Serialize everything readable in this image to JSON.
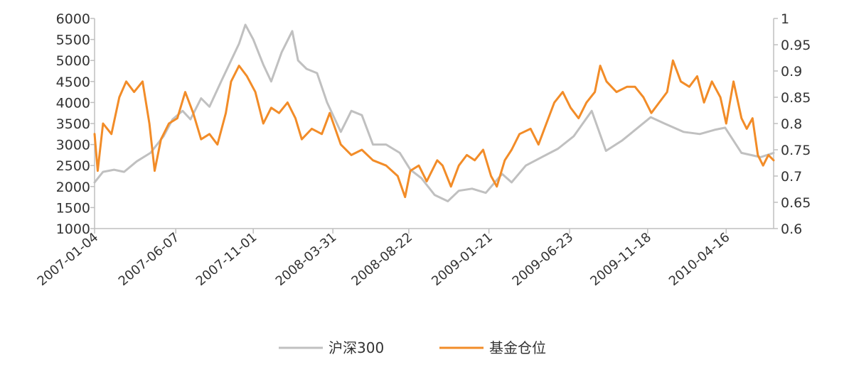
{
  "chart_data": {
    "type": "line",
    "title": "",
    "xlabel": "",
    "ylabel": "",
    "y_left": {
      "range": [
        1000,
        6000
      ],
      "ticks": [
        "1000",
        "1500",
        "2000",
        "2500",
        "3000",
        "3500",
        "4000",
        "4500",
        "5000",
        "5500",
        "6000"
      ]
    },
    "y_right": {
      "range": [
        0.6,
        1.0
      ],
      "ticks": [
        "0.6",
        "0.65",
        "0.7",
        "0.75",
        "0.8",
        "0.85",
        "0.9",
        "0.95",
        "1"
      ]
    },
    "x_ticks": [
      "2007-01-04",
      "2007-06-07",
      "2007-11-01",
      "2008-03-31",
      "2008-08-22",
      "2009-01-21",
      "2009-06-23",
      "2009-11-18",
      "2010-04-16"
    ],
    "x_range": [
      "2007-01-04",
      "2010-07-15"
    ],
    "grid": false,
    "legend_position": "bottom",
    "colors": {
      "hs300": "#c0c0c0",
      "fund": "#f28c28",
      "axis": "#bfbfbf"
    },
    "series": [
      {
        "name": "沪深300",
        "axis": "left",
        "points": [
          [
            "2007-01-04",
            2100
          ],
          [
            "2007-01-20",
            2350
          ],
          [
            "2007-02-10",
            2400
          ],
          [
            "2007-03-01",
            2350
          ],
          [
            "2007-03-25",
            2600
          ],
          [
            "2007-04-20",
            2800
          ],
          [
            "2007-05-15",
            3200
          ],
          [
            "2007-06-01",
            3600
          ],
          [
            "2007-06-20",
            3800
          ],
          [
            "2007-07-05",
            3600
          ],
          [
            "2007-07-25",
            4100
          ],
          [
            "2007-08-10",
            3900
          ],
          [
            "2007-09-01",
            4500
          ],
          [
            "2007-09-20",
            5000
          ],
          [
            "2007-10-05",
            5400
          ],
          [
            "2007-10-17",
            5850
          ],
          [
            "2007-11-01",
            5500
          ],
          [
            "2007-11-20",
            4900
          ],
          [
            "2007-12-05",
            4500
          ],
          [
            "2007-12-25",
            5200
          ],
          [
            "2008-01-14",
            5700
          ],
          [
            "2008-01-25",
            5000
          ],
          [
            "2008-02-10",
            4800
          ],
          [
            "2008-03-01",
            4700
          ],
          [
            "2008-03-20",
            4000
          ],
          [
            "2008-04-15",
            3300
          ],
          [
            "2008-05-05",
            3800
          ],
          [
            "2008-05-25",
            3700
          ],
          [
            "2008-06-15",
            3000
          ],
          [
            "2008-07-10",
            3000
          ],
          [
            "2008-08-05",
            2800
          ],
          [
            "2008-08-25",
            2400
          ],
          [
            "2008-09-15",
            2200
          ],
          [
            "2008-10-10",
            1800
          ],
          [
            "2008-11-04",
            1650
          ],
          [
            "2008-11-25",
            1900
          ],
          [
            "2008-12-20",
            1950
          ],
          [
            "2009-01-15",
            1850
          ],
          [
            "2009-02-15",
            2300
          ],
          [
            "2009-03-05",
            2100
          ],
          [
            "2009-04-01",
            2500
          ],
          [
            "2009-05-01",
            2700
          ],
          [
            "2009-06-01",
            2900
          ],
          [
            "2009-07-01",
            3200
          ],
          [
            "2009-08-04",
            3800
          ],
          [
            "2009-08-31",
            2850
          ],
          [
            "2009-10-01",
            3100
          ],
          [
            "2009-11-24",
            3650
          ],
          [
            "2009-12-20",
            3500
          ],
          [
            "2010-01-25",
            3300
          ],
          [
            "2010-02-25",
            3250
          ],
          [
            "2010-03-25",
            3350
          ],
          [
            "2010-04-14",
            3400
          ],
          [
            "2010-05-15",
            2800
          ],
          [
            "2010-06-20",
            2700
          ],
          [
            "2010-07-15",
            2800
          ]
        ]
      },
      {
        "name": "基金仓位",
        "axis": "right",
        "points": [
          [
            "2007-01-04",
            0.78
          ],
          [
            "2007-01-10",
            0.71
          ],
          [
            "2007-01-20",
            0.8
          ],
          [
            "2007-02-05",
            0.78
          ],
          [
            "2007-02-20",
            0.85
          ],
          [
            "2007-03-05",
            0.88
          ],
          [
            "2007-03-20",
            0.86
          ],
          [
            "2007-04-05",
            0.88
          ],
          [
            "2007-04-18",
            0.8
          ],
          [
            "2007-04-28",
            0.71
          ],
          [
            "2007-05-10",
            0.77
          ],
          [
            "2007-05-25",
            0.8
          ],
          [
            "2007-06-10",
            0.81
          ],
          [
            "2007-06-25",
            0.86
          ],
          [
            "2007-07-10",
            0.82
          ],
          [
            "2007-07-25",
            0.77
          ],
          [
            "2007-08-10",
            0.78
          ],
          [
            "2007-08-25",
            0.76
          ],
          [
            "2007-09-10",
            0.82
          ],
          [
            "2007-09-20",
            0.88
          ],
          [
            "2007-10-05",
            0.91
          ],
          [
            "2007-10-20",
            0.89
          ],
          [
            "2007-11-05",
            0.86
          ],
          [
            "2007-11-20",
            0.8
          ],
          [
            "2007-12-05",
            0.83
          ],
          [
            "2007-12-20",
            0.82
          ],
          [
            "2008-01-05",
            0.84
          ],
          [
            "2008-01-20",
            0.81
          ],
          [
            "2008-02-01",
            0.77
          ],
          [
            "2008-02-20",
            0.79
          ],
          [
            "2008-03-10",
            0.78
          ],
          [
            "2008-03-25",
            0.82
          ],
          [
            "2008-04-15",
            0.76
          ],
          [
            "2008-05-05",
            0.74
          ],
          [
            "2008-05-25",
            0.75
          ],
          [
            "2008-06-15",
            0.73
          ],
          [
            "2008-07-10",
            0.72
          ],
          [
            "2008-08-01",
            0.7
          ],
          [
            "2008-08-15",
            0.66
          ],
          [
            "2008-08-25",
            0.71
          ],
          [
            "2008-09-10",
            0.72
          ],
          [
            "2008-09-25",
            0.69
          ],
          [
            "2008-10-15",
            0.73
          ],
          [
            "2008-10-25",
            0.72
          ],
          [
            "2008-11-10",
            0.68
          ],
          [
            "2008-11-25",
            0.72
          ],
          [
            "2008-12-10",
            0.74
          ],
          [
            "2008-12-25",
            0.73
          ],
          [
            "2009-01-10",
            0.75
          ],
          [
            "2009-01-25",
            0.7
          ],
          [
            "2009-02-05",
            0.68
          ],
          [
            "2009-02-20",
            0.73
          ],
          [
            "2009-03-05",
            0.75
          ],
          [
            "2009-03-20",
            0.78
          ],
          [
            "2009-04-10",
            0.79
          ],
          [
            "2009-04-25",
            0.76
          ],
          [
            "2009-05-10",
            0.8
          ],
          [
            "2009-05-25",
            0.84
          ],
          [
            "2009-06-10",
            0.86
          ],
          [
            "2009-06-25",
            0.83
          ],
          [
            "2009-07-10",
            0.81
          ],
          [
            "2009-07-25",
            0.84
          ],
          [
            "2009-08-10",
            0.86
          ],
          [
            "2009-08-20",
            0.91
          ],
          [
            "2009-09-01",
            0.88
          ],
          [
            "2009-09-20",
            0.86
          ],
          [
            "2009-10-10",
            0.87
          ],
          [
            "2009-10-25",
            0.87
          ],
          [
            "2009-11-10",
            0.85
          ],
          [
            "2009-11-25",
            0.82
          ],
          [
            "2009-12-10",
            0.84
          ],
          [
            "2009-12-25",
            0.86
          ],
          [
            "2010-01-05",
            0.92
          ],
          [
            "2010-01-20",
            0.88
          ],
          [
            "2010-02-05",
            0.87
          ],
          [
            "2010-02-20",
            0.89
          ],
          [
            "2010-03-05",
            0.84
          ],
          [
            "2010-03-20",
            0.88
          ],
          [
            "2010-04-05",
            0.85
          ],
          [
            "2010-04-16",
            0.8
          ],
          [
            "2010-04-30",
            0.88
          ],
          [
            "2010-05-15",
            0.81
          ],
          [
            "2010-05-25",
            0.79
          ],
          [
            "2010-06-05",
            0.81
          ],
          [
            "2010-06-15",
            0.74
          ],
          [
            "2010-06-25",
            0.72
          ],
          [
            "2010-07-05",
            0.74
          ],
          [
            "2010-07-15",
            0.73
          ]
        ]
      }
    ]
  }
}
